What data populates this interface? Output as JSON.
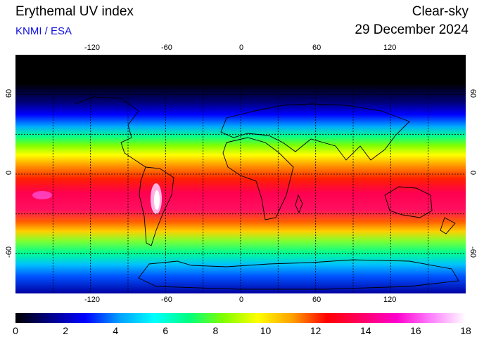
{
  "header": {
    "title": "Erythemal UV index",
    "source": "KNMI / ESA",
    "mode": "Clear-sky",
    "date": "29 December 2024"
  },
  "map": {
    "lon_ticks": [
      "-120",
      "-60",
      "0",
      "60",
      "120"
    ],
    "lat_ticks": [
      "60",
      "0",
      "-60"
    ],
    "lon_range": [
      -180,
      180
    ],
    "lat_range": [
      -90,
      90
    ],
    "grid": "dashed, every 30 degrees"
  },
  "colorbar": {
    "labels": [
      "0",
      "2",
      "4",
      "6",
      "8",
      "10",
      "12",
      "14",
      "16",
      "18"
    ],
    "min": 0,
    "max": 18,
    "stops": [
      "#000000",
      "#000088",
      "#0000ff",
      "#00a0ff",
      "#00ffff",
      "#00ff80",
      "#80ff00",
      "#ffff00",
      "#ffa000",
      "#ff0000",
      "#ff0066",
      "#ff00cc",
      "#ff80ff",
      "#ffffff"
    ]
  }
}
